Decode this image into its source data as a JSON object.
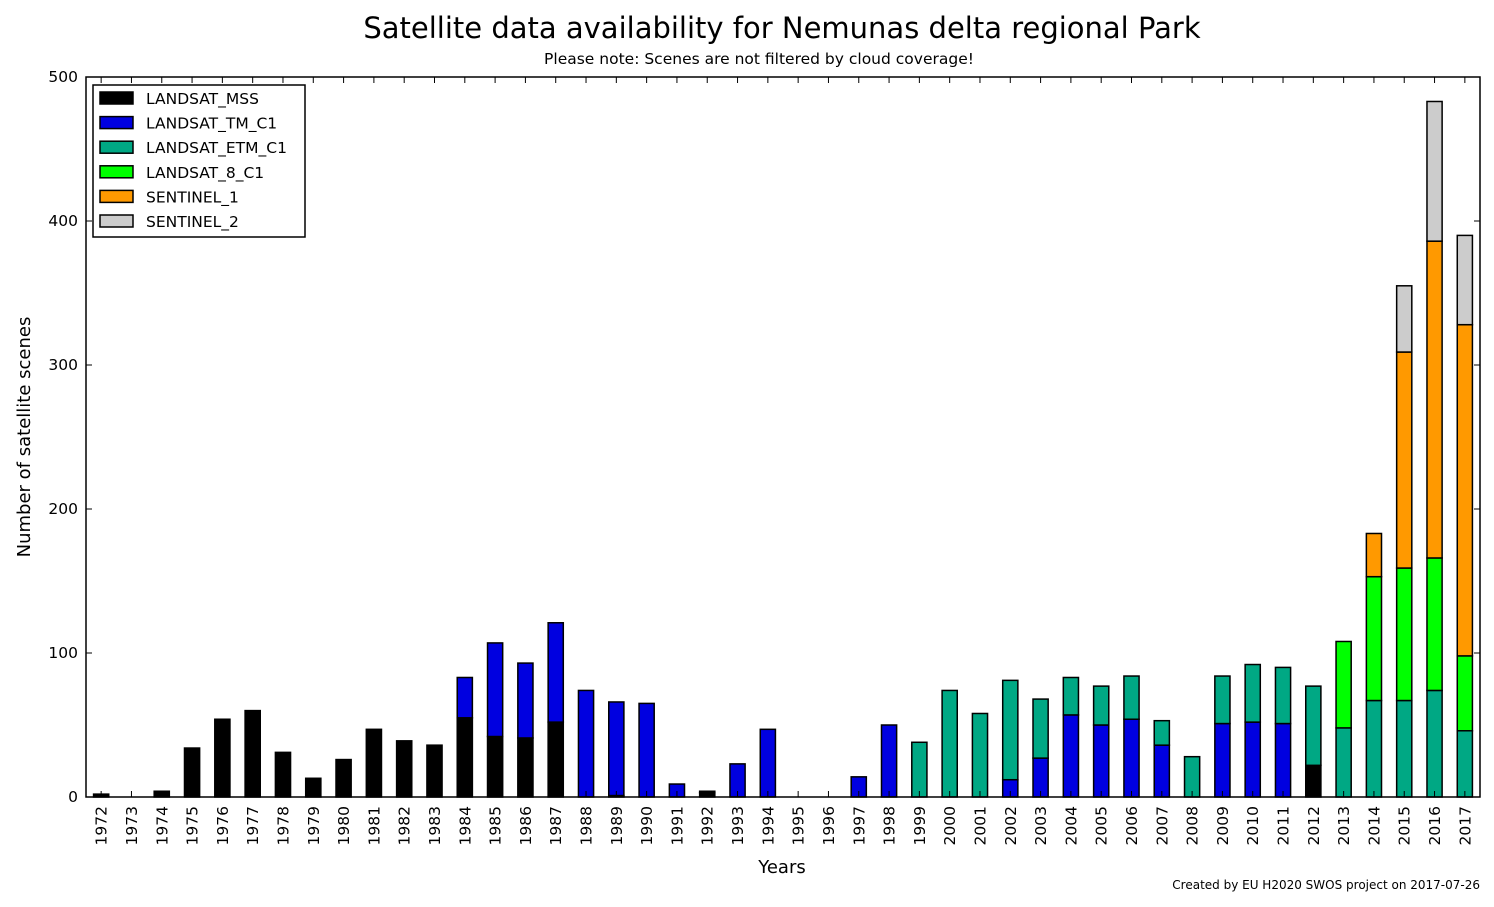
{
  "chart_data": {
    "type": "bar",
    "stacked": true,
    "title": "Satellite data availability for Nemunas delta regional Park",
    "subtitle": "Please note: Scenes are not filtered by cloud coverage!",
    "xlabel": "Years",
    "ylabel": "Number of satellite scenes",
    "ylim": [
      0,
      500
    ],
    "yticks": [
      0,
      100,
      200,
      300,
      400,
      500
    ],
    "grid": false,
    "legend_position": "top-left",
    "credit": "Created by EU H2020 SWOS project on 2017-07-26",
    "categories": [
      "1972",
      "1973",
      "1974",
      "1975",
      "1976",
      "1977",
      "1978",
      "1979",
      "1980",
      "1981",
      "1982",
      "1983",
      "1984",
      "1985",
      "1986",
      "1987",
      "1988",
      "1989",
      "1990",
      "1991",
      "1992",
      "1993",
      "1994",
      "1995",
      "1996",
      "1997",
      "1998",
      "1999",
      "2000",
      "2001",
      "2002",
      "2003",
      "2004",
      "2005",
      "2006",
      "2007",
      "2008",
      "2009",
      "2010",
      "2011",
      "2012",
      "2013",
      "2014",
      "2015",
      "2016",
      "2017"
    ],
    "series": [
      {
        "name": "LANDSAT_MSS",
        "color": "#000000",
        "values": [
          2,
          0,
          4,
          34,
          54,
          60,
          31,
          13,
          26,
          47,
          39,
          36,
          55,
          42,
          41,
          52,
          0,
          1,
          0,
          0,
          3,
          0,
          0,
          0,
          0,
          0,
          0,
          0,
          0,
          0,
          0,
          0,
          0,
          0,
          0,
          0,
          0,
          0,
          0,
          0,
          22,
          0,
          0,
          0,
          0,
          0
        ]
      },
      {
        "name": "LANDSAT_TM_C1",
        "color": "#0000e0",
        "values": [
          0,
          0,
          0,
          0,
          0,
          0,
          0,
          0,
          0,
          0,
          0,
          0,
          28,
          65,
          52,
          69,
          74,
          65,
          65,
          9,
          1,
          23,
          47,
          0,
          0,
          14,
          50,
          0,
          0,
          0,
          12,
          27,
          57,
          50,
          54,
          36,
          0,
          51,
          52,
          51,
          0,
          0,
          0,
          0,
          0,
          0
        ]
      },
      {
        "name": "LANDSAT_ETM_C1",
        "color": "#00a884",
        "values": [
          0,
          0,
          0,
          0,
          0,
          0,
          0,
          0,
          0,
          0,
          0,
          0,
          0,
          0,
          0,
          0,
          0,
          0,
          0,
          0,
          0,
          0,
          0,
          0,
          0,
          0,
          0,
          38,
          74,
          58,
          69,
          41,
          26,
          27,
          30,
          17,
          28,
          33,
          40,
          39,
          55,
          48,
          67,
          67,
          74,
          46
        ]
      },
      {
        "name": "LANDSAT_8_C1",
        "color": "#00ff00",
        "values": [
          0,
          0,
          0,
          0,
          0,
          0,
          0,
          0,
          0,
          0,
          0,
          0,
          0,
          0,
          0,
          0,
          0,
          0,
          0,
          0,
          0,
          0,
          0,
          0,
          0,
          0,
          0,
          0,
          0,
          0,
          0,
          0,
          0,
          0,
          0,
          0,
          0,
          0,
          0,
          0,
          0,
          60,
          86,
          92,
          92,
          52
        ]
      },
      {
        "name": "SENTINEL_1",
        "color": "#ff9900",
        "values": [
          0,
          0,
          0,
          0,
          0,
          0,
          0,
          0,
          0,
          0,
          0,
          0,
          0,
          0,
          0,
          0,
          0,
          0,
          0,
          0,
          0,
          0,
          0,
          0,
          0,
          0,
          0,
          0,
          0,
          0,
          0,
          0,
          0,
          0,
          0,
          0,
          0,
          0,
          0,
          0,
          0,
          0,
          30,
          150,
          220,
          230
        ]
      },
      {
        "name": "SENTINEL_2",
        "color": "#cccccc",
        "values": [
          0,
          0,
          0,
          0,
          0,
          0,
          0,
          0,
          0,
          0,
          0,
          0,
          0,
          0,
          0,
          0,
          0,
          0,
          0,
          0,
          0,
          0,
          0,
          0,
          0,
          0,
          0,
          0,
          0,
          0,
          0,
          0,
          0,
          0,
          0,
          0,
          0,
          0,
          0,
          0,
          0,
          0,
          0,
          46,
          97,
          62
        ]
      }
    ]
  }
}
